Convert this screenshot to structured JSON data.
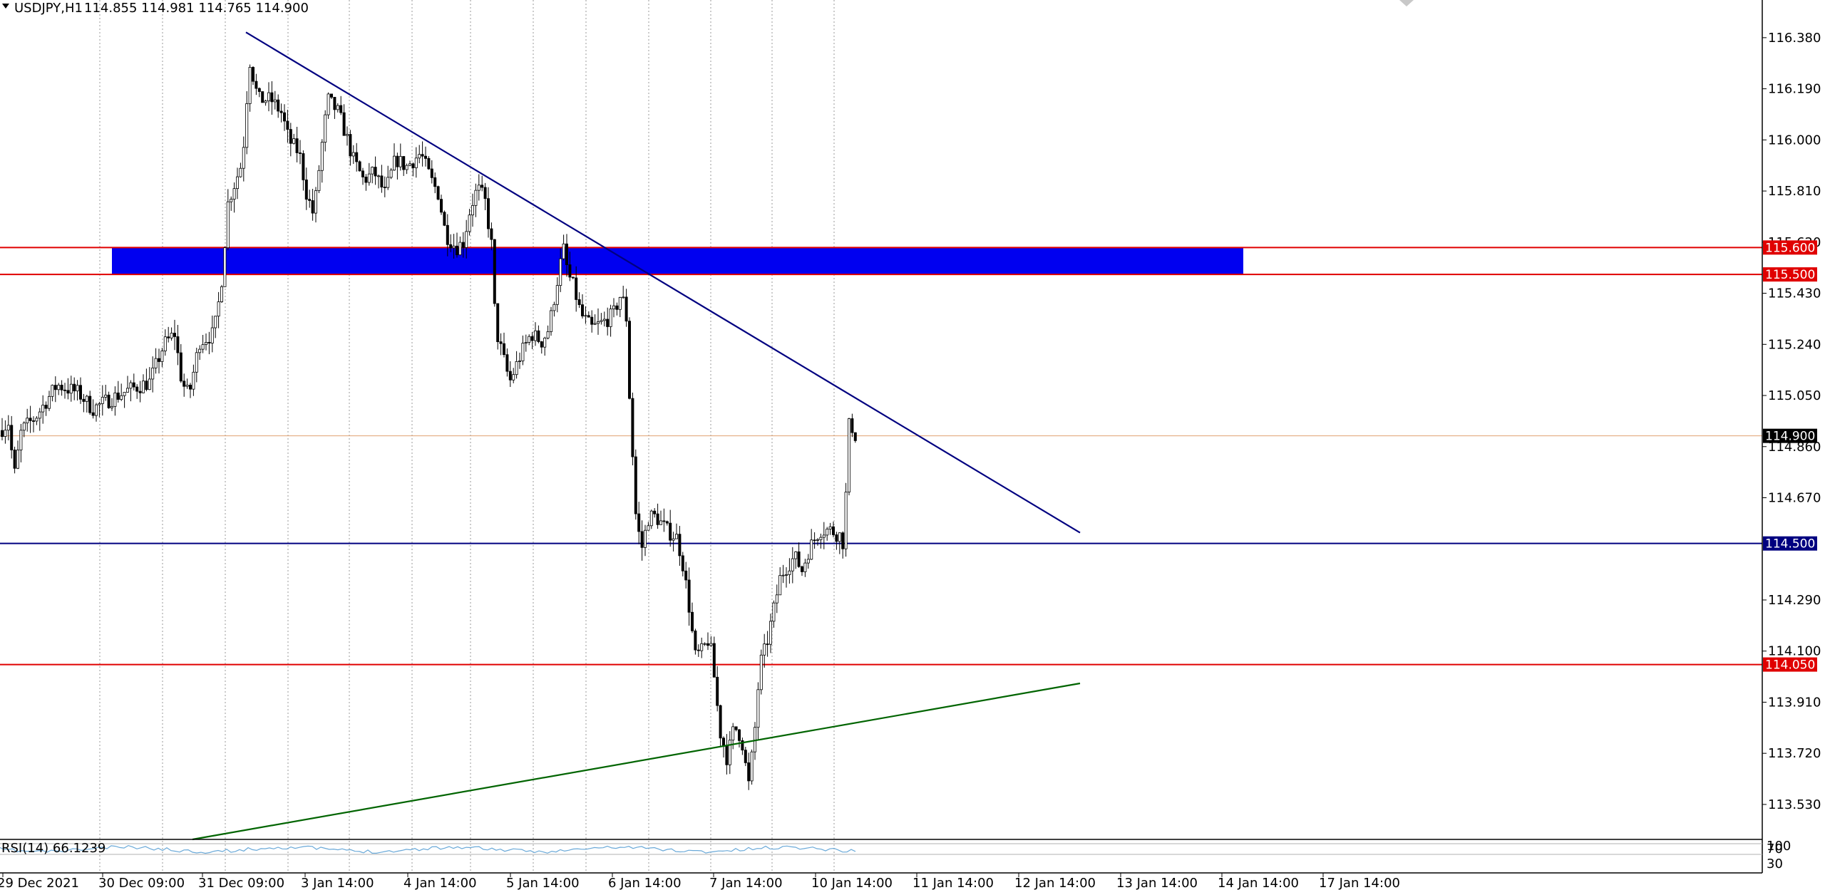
{
  "header": {
    "symbol": "USDJPY,H1",
    "ohlc": "114.855 114.981 114.765 114.900"
  },
  "rsi": {
    "label": "RSI(14) 66.1239",
    "ticks": [
      "100",
      "70",
      "30"
    ]
  },
  "colors": {
    "background": "#ffffff",
    "candle": "#000000",
    "zone": "#0000f0",
    "resistance": "#e00000",
    "support": "#000080",
    "trend_down": "#000080",
    "trend_up": "#006400",
    "current_price": "#000000",
    "rsi_line": "#6aa9d8"
  },
  "chart_data": {
    "type": "candlestick",
    "symbol": "USDJPY",
    "timeframe": "H1",
    "ylim": [
      113.4,
      116.52
    ],
    "y_ticks": [
      "116.380",
      "116.190",
      "116.000",
      "115.810",
      "115.620",
      "115.430",
      "115.240",
      "115.050",
      "114.860",
      "114.670",
      "114.290",
      "114.100",
      "113.910",
      "113.720",
      "113.530"
    ],
    "x_ticks": [
      "29 Dec 2021",
      "30 Dec 09:00",
      "31 Dec 09:00",
      "3 Jan 14:00",
      "4 Jan 14:00",
      "5 Jan 14:00",
      "6 Jan 14:00",
      "7 Jan 14:00",
      "10 Jan 14:00",
      "11 Jan 14:00",
      "12 Jan 14:00",
      "13 Jan 14:00",
      "14 Jan 14:00",
      "17 Jan 14:00"
    ],
    "current_price": "114.900",
    "zone": {
      "low": 115.5,
      "high": 115.6
    },
    "horizontal_levels": [
      {
        "label": "115.600",
        "value": 115.6,
        "color": "#e00000"
      },
      {
        "label": "115.500",
        "value": 115.5,
        "color": "#e00000"
      },
      {
        "label": "114.500",
        "value": 114.5,
        "color": "#000080"
      },
      {
        "label": "114.050",
        "value": 114.05,
        "color": "#e00000"
      }
    ],
    "trendlines": [
      {
        "name": "down",
        "points": [
          [
            345,
            116.4
          ],
          [
            1515,
            114.54
          ]
        ]
      },
      {
        "name": "up",
        "points": [
          [
            270,
            113.4
          ],
          [
            1515,
            113.98
          ]
        ]
      }
    ],
    "anchors": [
      [
        0,
        114.92
      ],
      [
        12,
        114.95
      ],
      [
        20,
        114.75
      ],
      [
        30,
        114.92
      ],
      [
        50,
        114.97
      ],
      [
        80,
        115.09
      ],
      [
        110,
        115.06
      ],
      [
        130,
        115.0
      ],
      [
        150,
        115.03
      ],
      [
        180,
        115.07
      ],
      [
        210,
        115.1
      ],
      [
        230,
        115.24
      ],
      [
        245,
        115.28
      ],
      [
        255,
        115.1
      ],
      [
        265,
        115.05
      ],
      [
        280,
        115.25
      ],
      [
        300,
        115.28
      ],
      [
        310,
        115.45
      ],
      [
        320,
        115.77
      ],
      [
        340,
        115.92
      ],
      [
        350,
        116.3
      ],
      [
        362,
        116.15
      ],
      [
        380,
        116.15
      ],
      [
        395,
        116.1
      ],
      [
        405,
        116.0
      ],
      [
        420,
        115.95
      ],
      [
        430,
        115.8
      ],
      [
        440,
        115.72
      ],
      [
        450,
        115.95
      ],
      [
        460,
        116.15
      ],
      [
        475,
        116.1
      ],
      [
        485,
        116.02
      ],
      [
        495,
        115.93
      ],
      [
        510,
        115.85
      ],
      [
        525,
        115.88
      ],
      [
        540,
        115.8
      ],
      [
        555,
        115.93
      ],
      [
        570,
        115.9
      ],
      [
        590,
        115.95
      ],
      [
        605,
        115.85
      ],
      [
        615,
        115.8
      ],
      [
        625,
        115.65
      ],
      [
        640,
        115.6
      ],
      [
        650,
        115.62
      ],
      [
        660,
        115.75
      ],
      [
        670,
        115.82
      ],
      [
        680,
        115.78
      ],
      [
        690,
        115.6
      ],
      [
        695,
        115.3
      ],
      [
        705,
        115.2
      ],
      [
        715,
        115.1
      ],
      [
        730,
        115.2
      ],
      [
        745,
        115.28
      ],
      [
        760,
        115.25
      ],
      [
        770,
        115.3
      ],
      [
        780,
        115.45
      ],
      [
        790,
        115.6
      ],
      [
        797,
        115.5
      ],
      [
        805,
        115.45
      ],
      [
        815,
        115.35
      ],
      [
        830,
        115.3
      ],
      [
        845,
        115.32
      ],
      [
        860,
        115.35
      ],
      [
        870,
        115.42
      ],
      [
        878,
        115.38
      ],
      [
        882,
        115.1
      ],
      [
        886,
        114.9
      ],
      [
        892,
        114.6
      ],
      [
        900,
        114.48
      ],
      [
        910,
        114.6
      ],
      [
        920,
        114.6
      ],
      [
        935,
        114.55
      ],
      [
        950,
        114.52
      ],
      [
        958,
        114.42
      ],
      [
        965,
        114.3
      ],
      [
        975,
        114.08
      ],
      [
        985,
        114.1
      ],
      [
        995,
        114.15
      ],
      [
        1002,
        114.0
      ],
      [
        1010,
        113.8
      ],
      [
        1020,
        113.7
      ],
      [
        1030,
        113.82
      ],
      [
        1040,
        113.78
      ],
      [
        1050,
        113.6
      ],
      [
        1058,
        113.78
      ],
      [
        1066,
        114.05
      ],
      [
        1075,
        114.12
      ],
      [
        1085,
        114.25
      ],
      [
        1095,
        114.38
      ],
      [
        1105,
        114.42
      ],
      [
        1115,
        114.45
      ],
      [
        1125,
        114.4
      ],
      [
        1135,
        114.48
      ],
      [
        1150,
        114.55
      ],
      [
        1165,
        114.55
      ],
      [
        1178,
        114.53
      ],
      [
        1183,
        114.5
      ],
      [
        1188,
        114.75
      ],
      [
        1192,
        115.0
      ],
      [
        1197,
        114.9
      ],
      [
        1204,
        114.9
      ]
    ]
  }
}
